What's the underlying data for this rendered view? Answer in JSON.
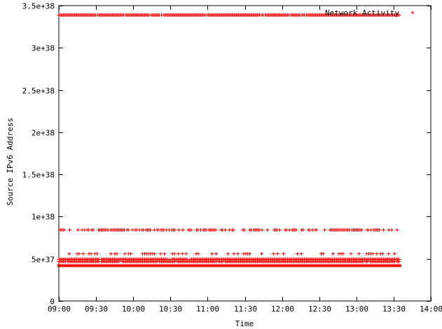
{
  "chart_data": {
    "type": "scatter",
    "title": "",
    "xlabel": "Time",
    "ylabel": "Source IPv6 Address",
    "xlim": [
      "09:00",
      "14:00"
    ],
    "ylim": [
      0,
      3.5e+38
    ],
    "grid": false,
    "legend_position": "top-right",
    "x_ticks": [
      "09:00",
      "09:30",
      "10:00",
      "10:30",
      "11:00",
      "11:30",
      "12:00",
      "12:30",
      "13:00",
      "13:30",
      "14:00"
    ],
    "y_ticks": [
      {
        "value": 0,
        "label": "0"
      },
      {
        "value": 5e+37,
        "label": "5e+37"
      },
      {
        "value": 1e+38,
        "label": "1e+38"
      },
      {
        "value": 1.5e+38,
        "label": "1.5e+38"
      },
      {
        "value": 2e+38,
        "label": "2e+38"
      },
      {
        "value": 2.5e+38,
        "label": "2.5e+38"
      },
      {
        "value": 3e+38,
        "label": "3e+38"
      },
      {
        "value": 3.5e+38,
        "label": "3.5e+38"
      }
    ],
    "series": [
      {
        "name": "Network Activity",
        "color": "#ff0000",
        "marker": "plus",
        "bands": [
          {
            "y": 3.39e+38,
            "x_start": "09:00",
            "x_end": "13:35",
            "density": "dense"
          },
          {
            "y": 8.5e+37,
            "x_start": "09:00",
            "x_end": "13:35",
            "density": "medium"
          },
          {
            "y": 5.6e+37,
            "x_start": "09:02",
            "x_end": "13:35",
            "density": "sparse"
          },
          {
            "y": 5e+37,
            "x_start": "09:00",
            "x_end": "13:35",
            "density": "dense"
          },
          {
            "y": 4.7e+37,
            "x_start": "09:00",
            "x_end": "13:35",
            "density": "dense"
          },
          {
            "y": 4.2e+37,
            "x_start": "09:00",
            "x_end": "13:35",
            "density": "solid"
          }
        ]
      }
    ]
  }
}
